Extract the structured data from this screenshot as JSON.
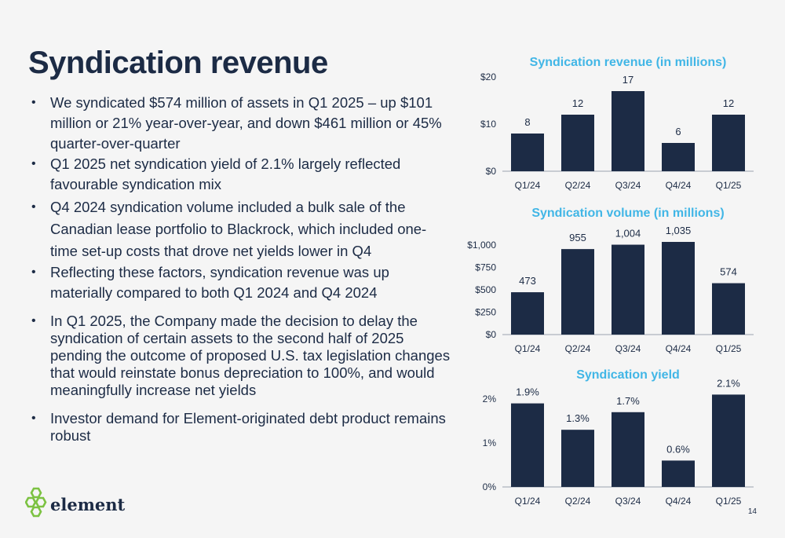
{
  "slide": {
    "title": "Syndication revenue",
    "page_number": "14",
    "logo_text": "element"
  },
  "bullets": [
    "We syndicated $574 million of assets in Q1 2025 – up $101 million or 21% year-over-year, and down $461 million or 45% quarter-over-quarter",
    "Q1 2025 net syndication yield of 2.1% largely reflected favourable syndication mix",
    "Q4 2024 syndication volume included a bulk sale of the Canadian lease portfolio to Blackrock, which included one-time set-up costs that drove net yields lower in Q4",
    "Reflecting these factors, syndication revenue was up materially compared to both Q1 2024 and Q4 2024",
    "In Q1 2025, the Company made the decision to delay the syndication of certain assets to the second half of 2025 pending the outcome of proposed U.S. tax legislation changes that would reinstate bonus depreciation to 100%, and would meaningfully increase net yields",
    "Investor demand for Element-originated debt product remains robust"
  ],
  "colors": {
    "title": "#1c2b45",
    "chart_title": "#41b6e6",
    "bar": "#1c2b45",
    "logo_green": "#7cc242"
  },
  "chart_data": [
    {
      "type": "bar",
      "title": "Syndication revenue (in millions)",
      "categories": [
        "Q1/24",
        "Q2/24",
        "Q3/24",
        "Q4/24",
        "Q1/25"
      ],
      "values": [
        8,
        12,
        17,
        6,
        12
      ],
      "data_labels": [
        "8",
        "12",
        "17",
        "6",
        "12"
      ],
      "yticks": [
        "$0",
        "$10",
        "$20"
      ],
      "ylim": [
        0,
        20
      ],
      "grid": false
    },
    {
      "type": "bar",
      "title": "Syndication volume (in millions)",
      "categories": [
        "Q1/24",
        "Q2/24",
        "Q3/24",
        "Q4/24",
        "Q1/25"
      ],
      "values": [
        473,
        955,
        1004,
        1035,
        574
      ],
      "data_labels": [
        "473",
        "955",
        "1,004",
        "1,035",
        "574"
      ],
      "yticks": [
        "$0",
        "$250",
        "$500",
        "$750",
        "$1,000"
      ],
      "ylim": [
        0,
        1000
      ],
      "grid": false
    },
    {
      "type": "bar",
      "title": "Syndication yield",
      "categories": [
        "Q1/24",
        "Q2/24",
        "Q3/24",
        "Q4/24",
        "Q1/25"
      ],
      "values": [
        1.9,
        1.3,
        1.7,
        0.6,
        2.1
      ],
      "data_labels": [
        "1.9%",
        "1.3%",
        "1.7%",
        "0.6%",
        "2.1%"
      ],
      "yticks": [
        "0%",
        "1%",
        "2%"
      ],
      "ylim": [
        0,
        2
      ],
      "grid": false
    }
  ]
}
